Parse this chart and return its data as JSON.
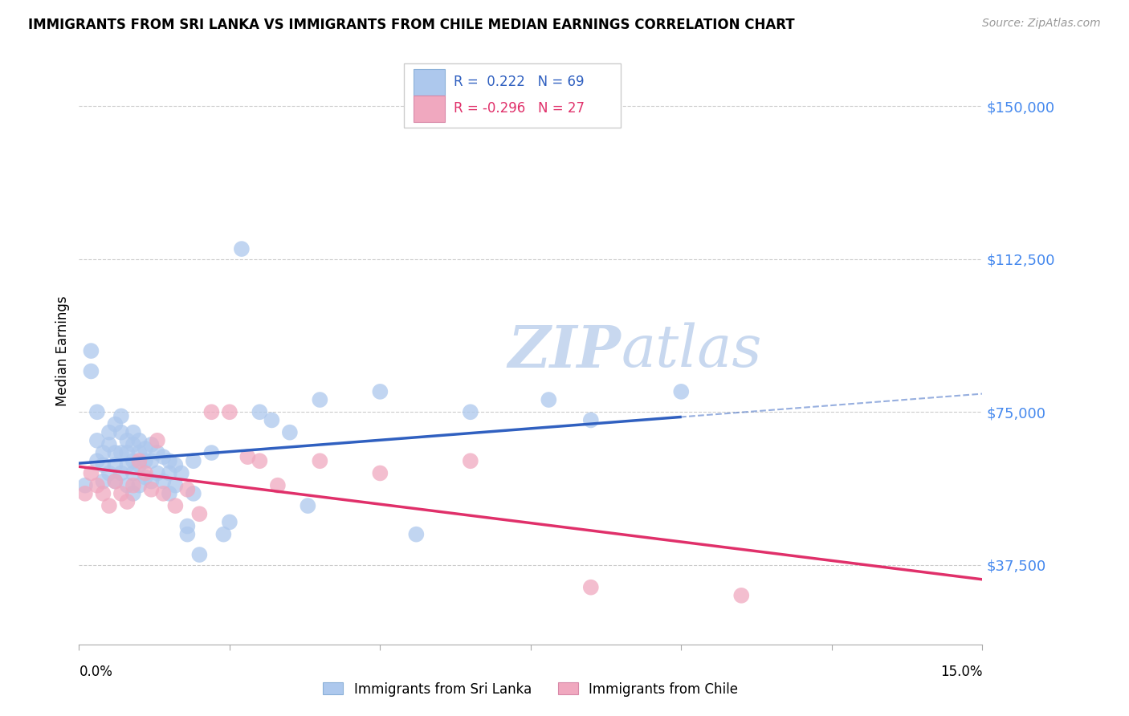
{
  "title": "IMMIGRANTS FROM SRI LANKA VS IMMIGRANTS FROM CHILE MEDIAN EARNINGS CORRELATION CHART",
  "source": "Source: ZipAtlas.com",
  "ylabel": "Median Earnings",
  "y_ticks": [
    37500,
    75000,
    112500,
    150000
  ],
  "y_tick_labels": [
    "$37,500",
    "$75,000",
    "$112,500",
    "$150,000"
  ],
  "x_min": 0.0,
  "x_max": 0.15,
  "y_min": 18000,
  "y_max": 162000,
  "legend1_R": "0.222",
  "legend1_N": "69",
  "legend2_R": "-0.296",
  "legend2_N": "27",
  "sri_lanka_color": "#adc8ed",
  "chile_color": "#f0a8bf",
  "sri_lanka_line_color": "#3060c0",
  "chile_line_color": "#e0306a",
  "watermark_color": "#c8d8ef",
  "ytick_color": "#4488ee",
  "grid_color": "#cccccc",
  "sri_lanka_label": "Immigrants from Sri Lanka",
  "chile_label": "Immigrants from Chile",
  "sri_lanka_x": [
    0.001,
    0.002,
    0.002,
    0.003,
    0.003,
    0.003,
    0.004,
    0.004,
    0.004,
    0.005,
    0.005,
    0.005,
    0.006,
    0.006,
    0.006,
    0.006,
    0.007,
    0.007,
    0.007,
    0.007,
    0.008,
    0.008,
    0.008,
    0.008,
    0.009,
    0.009,
    0.009,
    0.009,
    0.009,
    0.01,
    0.01,
    0.01,
    0.01,
    0.011,
    0.011,
    0.011,
    0.012,
    0.012,
    0.012,
    0.013,
    0.013,
    0.014,
    0.014,
    0.015,
    0.015,
    0.015,
    0.016,
    0.016,
    0.017,
    0.018,
    0.018,
    0.019,
    0.019,
    0.02,
    0.022,
    0.024,
    0.025,
    0.027,
    0.03,
    0.032,
    0.035,
    0.038,
    0.04,
    0.05,
    0.056,
    0.065,
    0.078,
    0.085,
    0.1
  ],
  "sri_lanka_y": [
    57000,
    85000,
    90000,
    75000,
    68000,
    63000,
    65000,
    62000,
    58000,
    70000,
    67000,
    60000,
    72000,
    65000,
    62000,
    58000,
    74000,
    70000,
    65000,
    60000,
    68000,
    65000,
    62000,
    57000,
    70000,
    67000,
    63000,
    60000,
    55000,
    68000,
    65000,
    62000,
    57000,
    66000,
    63000,
    59000,
    67000,
    63000,
    58000,
    65000,
    60000,
    64000,
    58000,
    63000,
    60000,
    55000,
    62000,
    57000,
    60000,
    45000,
    47000,
    63000,
    55000,
    40000,
    65000,
    45000,
    48000,
    115000,
    75000,
    73000,
    70000,
    52000,
    78000,
    80000,
    45000,
    75000,
    78000,
    73000,
    80000
  ],
  "chile_x": [
    0.001,
    0.002,
    0.003,
    0.004,
    0.005,
    0.006,
    0.007,
    0.008,
    0.009,
    0.01,
    0.011,
    0.012,
    0.013,
    0.014,
    0.016,
    0.018,
    0.02,
    0.022,
    0.025,
    0.028,
    0.03,
    0.033,
    0.04,
    0.05,
    0.065,
    0.085,
    0.11
  ],
  "chile_y": [
    55000,
    60000,
    57000,
    55000,
    52000,
    58000,
    55000,
    53000,
    57000,
    63000,
    60000,
    56000,
    68000,
    55000,
    52000,
    56000,
    50000,
    75000,
    75000,
    64000,
    63000,
    57000,
    63000,
    60000,
    63000,
    32000,
    30000
  ]
}
